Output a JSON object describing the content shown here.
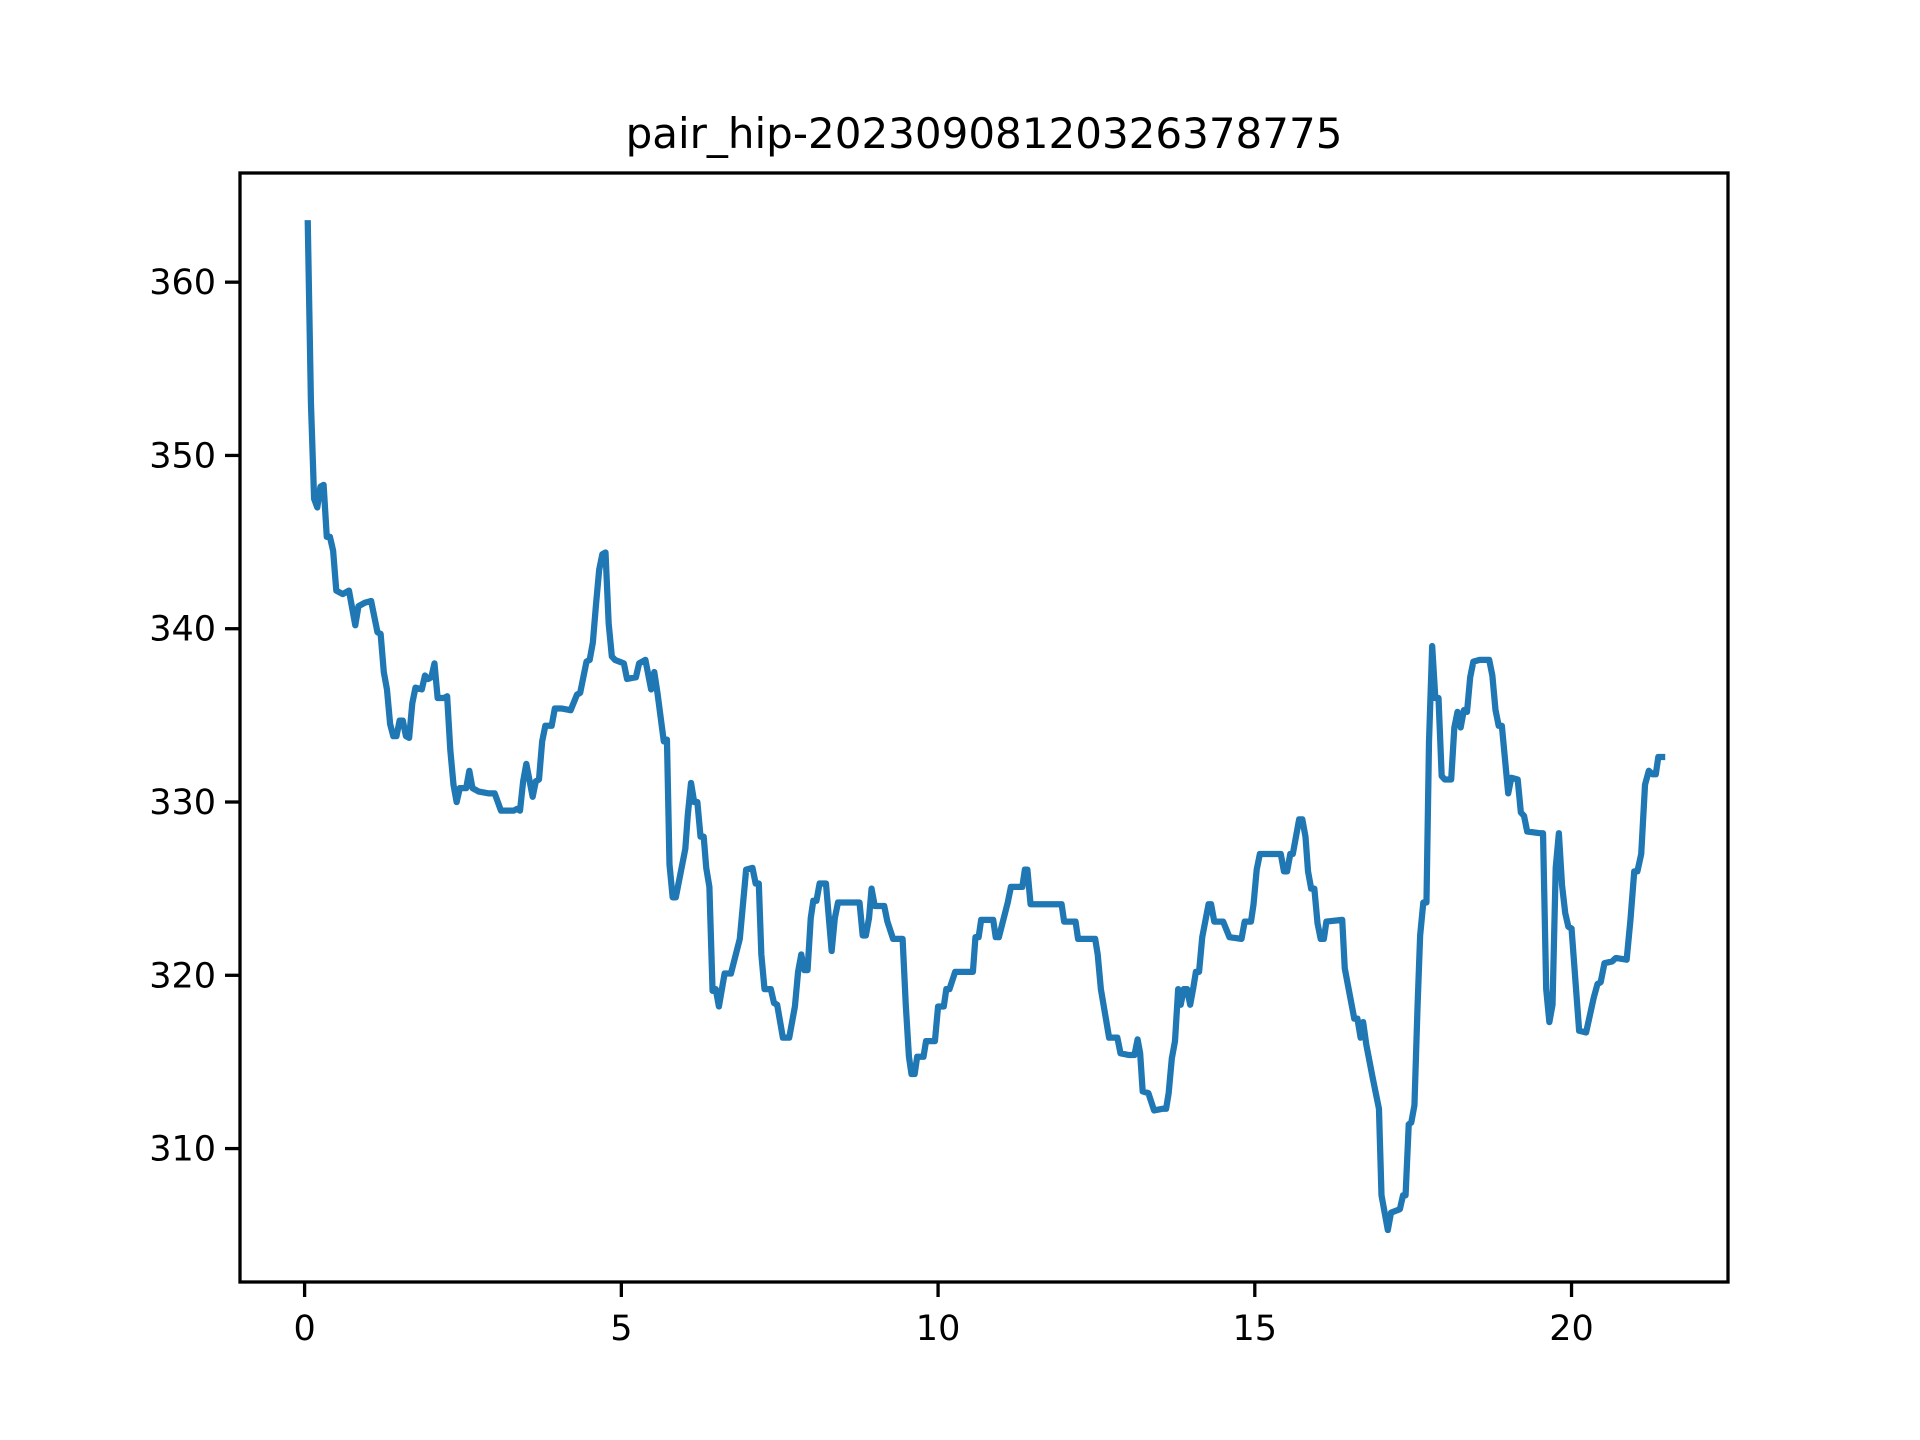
{
  "chart_data": {
    "type": "line",
    "title": "pair_hip-20230908120326378775",
    "x": [
      0.05,
      0.1,
      0.15,
      0.2,
      0.25,
      0.3,
      0.35,
      0.4,
      0.45,
      0.5,
      0.6,
      0.7,
      0.8,
      0.85,
      0.95,
      1.05,
      1.15,
      1.2,
      1.25,
      1.3,
      1.35,
      1.4,
      1.45,
      1.5,
      1.55,
      1.6,
      1.65,
      1.7,
      1.75,
      1.85,
      1.9,
      1.95,
      2.0,
      2.05,
      2.1,
      2.2,
      2.25,
      2.3,
      2.35,
      2.4,
      2.45,
      2.55,
      2.6,
      2.65,
      2.75,
      2.9,
      3.0,
      3.1,
      3.3,
      3.35,
      3.4,
      3.45,
      3.5,
      3.6,
      3.65,
      3.7,
      3.75,
      3.8,
      3.9,
      3.95,
      4.05,
      4.2,
      4.3,
      4.35,
      4.45,
      4.5,
      4.55,
      4.6,
      4.65,
      4.7,
      4.75,
      4.8,
      4.85,
      4.9,
      5.04,
      5.09,
      5.23,
      5.28,
      5.38,
      5.47,
      5.52,
      5.57,
      5.67,
      5.72,
      5.76,
      5.81,
      5.86,
      6.01,
      6.05,
      6.1,
      6.15,
      6.2,
      6.25,
      6.3,
      6.34,
      6.39,
      6.44,
      6.49,
      6.54,
      6.63,
      6.73,
      6.87,
      6.97,
      7.07,
      7.12,
      7.17,
      7.21,
      7.26,
      7.36,
      7.41,
      7.46,
      7.55,
      7.65,
      7.74,
      7.79,
      7.84,
      7.89,
      7.94,
      7.99,
      8.03,
      8.08,
      8.13,
      8.23,
      8.32,
      8.37,
      8.42,
      8.57,
      8.76,
      8.81,
      8.86,
      8.91,
      8.95,
      9.0,
      9.15,
      9.2,
      9.29,
      9.34,
      9.44,
      9.49,
      9.54,
      9.58,
      9.63,
      9.67,
      9.77,
      9.81,
      9.95,
      10.0,
      10.09,
      10.13,
      10.18,
      10.27,
      10.45,
      10.55,
      10.59,
      10.64,
      10.68,
      10.87,
      10.91,
      10.96,
      11.1,
      11.15,
      11.33,
      11.37,
      11.41,
      11.46,
      11.63,
      11.81,
      11.95,
      11.99,
      12.17,
      12.21,
      12.35,
      12.48,
      12.52,
      12.57,
      12.7,
      12.83,
      12.88,
      13.01,
      13.1,
      13.15,
      13.19,
      13.23,
      13.32,
      13.41,
      13.55,
      13.6,
      13.64,
      13.69,
      13.74,
      13.79,
      13.83,
      13.88,
      13.93,
      13.98,
      14.03,
      14.07,
      14.12,
      14.17,
      14.27,
      14.31,
      14.36,
      14.46,
      14.5,
      14.6,
      14.79,
      14.84,
      14.94,
      14.98,
      15.03,
      15.08,
      15.27,
      15.41,
      15.46,
      15.51,
      15.56,
      15.6,
      15.65,
      15.7,
      15.75,
      15.8,
      15.84,
      15.89,
      15.94,
      15.99,
      16.04,
      16.09,
      16.13,
      16.38,
      16.42,
      16.57,
      16.62,
      16.67,
      16.71,
      16.76,
      16.86,
      16.96,
      17.0,
      17.1,
      17.15,
      17.29,
      17.34,
      17.38,
      17.43,
      17.47,
      17.52,
      17.57,
      17.61,
      17.66,
      17.71,
      17.75,
      17.8,
      17.85,
      17.9,
      17.95,
      18.0,
      18.1,
      18.15,
      18.2,
      18.25,
      18.3,
      18.35,
      18.4,
      18.45,
      18.55,
      18.7,
      18.75,
      18.8,
      18.85,
      18.9,
      19.0,
      19.05,
      19.15,
      19.2,
      19.25,
      19.3,
      19.5,
      19.55,
      19.6,
      19.65,
      19.7,
      19.75,
      19.8,
      19.85,
      19.9,
      19.95,
      20.0,
      20.12,
      20.23,
      20.35,
      20.41,
      20.46,
      20.52,
      20.64,
      20.7,
      20.87,
      20.93,
      20.99,
      21.04,
      21.1,
      21.16,
      21.22,
      21.28,
      21.33,
      21.37,
      21.43
    ],
    "y": [
      363.4,
      353,
      347.5,
      347,
      348.2,
      348.3,
      345.3,
      345.3,
      344.5,
      342.2,
      342,
      342.2,
      340.2,
      341.3,
      341.5,
      341.6,
      339.8,
      339.7,
      337.5,
      336.5,
      334.5,
      333.8,
      333.8,
      334.7,
      334.7,
      333.8,
      333.7,
      335.7,
      336.6,
      336.5,
      337.3,
      337.1,
      337.2,
      338,
      336,
      336,
      336.1,
      333,
      331,
      330,
      330.8,
      330.8,
      331.8,
      330.8,
      330.6,
      330.5,
      330.5,
      329.5,
      329.5,
      329.6,
      329.5,
      331.2,
      332.2,
      330.3,
      331.2,
      331.3,
      333.5,
      334.4,
      334.4,
      335.4,
      335.4,
      335.3,
      336.2,
      336.3,
      338.1,
      338.2,
      339.2,
      341.4,
      343.4,
      344.3,
      344.4,
      340.3,
      338.4,
      338.2,
      338,
      337.1,
      337.2,
      338,
      338.2,
      336.5,
      337.5,
      336.3,
      333.5,
      333.6,
      326.4,
      324.5,
      324.5,
      327.3,
      329.3,
      331.1,
      330,
      330,
      328,
      328,
      326.2,
      325.1,
      319.1,
      319.2,
      318.2,
      320.1,
      320.1,
      322.1,
      326.1,
      326.2,
      325.3,
      325.3,
      321.2,
      319.2,
      319.2,
      318.4,
      318.3,
      316.4,
      316.4,
      318.2,
      320.2,
      321.2,
      320.3,
      320.3,
      323.3,
      324.3,
      324.3,
      325.3,
      325.3,
      321.4,
      323.3,
      324.2,
      324.2,
      324.2,
      322.3,
      322.3,
      323.3,
      325,
      324,
      324,
      323.1,
      322.1,
      322.1,
      322.1,
      318.3,
      315.3,
      314.3,
      314.3,
      315.3,
      315.3,
      316.2,
      316.2,
      318.2,
      318.2,
      319.2,
      319.2,
      320.2,
      320.2,
      320.2,
      322.2,
      322.2,
      323.2,
      323.2,
      322.2,
      322.2,
      324.2,
      325.1,
      325.1,
      326.1,
      326.1,
      324.1,
      324.1,
      324.1,
      324.1,
      323.1,
      323.1,
      322.1,
      322.1,
      322.1,
      321.2,
      319.2,
      316.4,
      316.4,
      315.5,
      315.4,
      315.4,
      316.3,
      315.5,
      313.3,
      313.2,
      312.2,
      312.3,
      312.3,
      313.2,
      315.2,
      316.2,
      319.2,
      318.3,
      319.2,
      319.2,
      318.3,
      319.3,
      320.2,
      320.2,
      322.2,
      324.1,
      324.1,
      323.1,
      323.1,
      323.1,
      322.2,
      322.1,
      323.1,
      323.1,
      324.1,
      326.1,
      327,
      327,
      327,
      326,
      326,
      327,
      327,
      328,
      329,
      329,
      328,
      326,
      325,
      325,
      323,
      322.1,
      322.1,
      323.1,
      323.2,
      320.4,
      317.5,
      317.5,
      316.4,
      317.3,
      316,
      314.1,
      312.3,
      307.3,
      305.3,
      306.3,
      306.5,
      307.3,
      307.3,
      311.4,
      311.5,
      312.5,
      318.3,
      322.3,
      324.2,
      324.2,
      333.5,
      339,
      336,
      336,
      331.5,
      331.3,
      331.3,
      334.3,
      335.2,
      334.3,
      335.3,
      335.2,
      337.2,
      338.1,
      338.2,
      338.2,
      337.3,
      335.3,
      334.4,
      334.4,
      330.5,
      331.4,
      331.3,
      329.4,
      329.2,
      328.3,
      328.2,
      328.2,
      319.2,
      317.3,
      318.3,
      326.2,
      328.2,
      325.2,
      323.6,
      322.8,
      322.7,
      316.8,
      316.7,
      318.7,
      319.5,
      319.6,
      320.7,
      320.8,
      321,
      320.9,
      323.2,
      326,
      326,
      327,
      331,
      331.8,
      331.6,
      331.6,
      332.6,
      332.6
    ],
    "color": "#1f77b4",
    "xlim": [
      -1.02,
      22.47
    ],
    "xticks": [
      0,
      5,
      10,
      15,
      20
    ],
    "ylim": [
      302.3,
      366.3
    ],
    "yticks": [
      310,
      320,
      330,
      340,
      350,
      360
    ]
  }
}
